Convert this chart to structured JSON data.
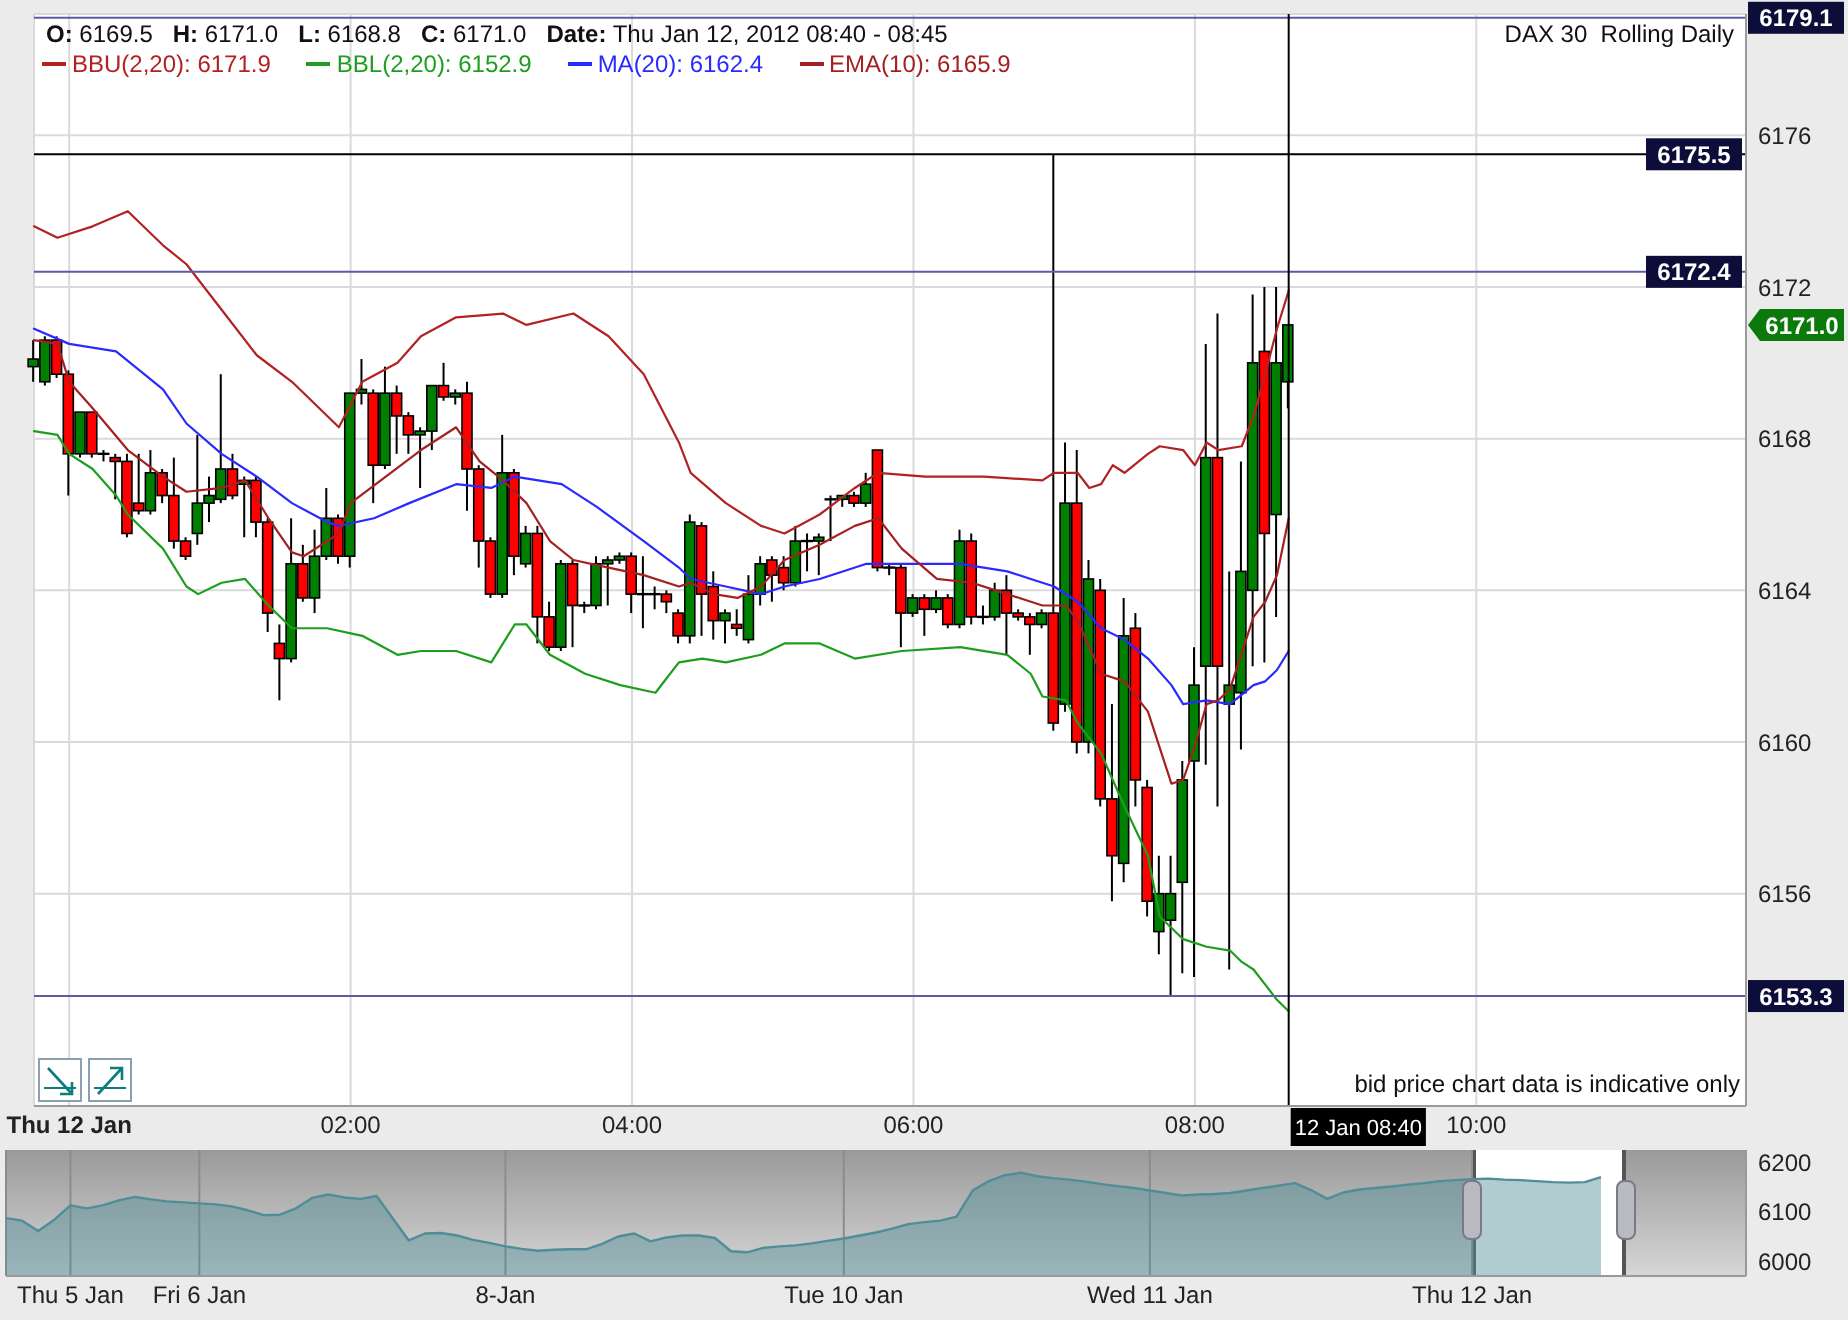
{
  "chart_data": [
    {
      "type": "candlestick",
      "title": "DAX 30  Rolling Daily",
      "subtitle": "O: 6169.5   H: 6171.0   L: 6168.8   C: 6171.0   Date: Thu Jan 12, 2012 08:40 - 08:45",
      "x": [
        "2012-01-11T23:45",
        "2012-01-11T23:50",
        "2012-01-11T23:55",
        "2012-01-12T00:00",
        "2012-01-12T00:05",
        "2012-01-12T00:10",
        "2012-01-12T00:15",
        "2012-01-12T00:20",
        "2012-01-12T00:25",
        "2012-01-12T00:30",
        "2012-01-12T00:35",
        "2012-01-12T00:40",
        "2012-01-12T00:45",
        "2012-01-12T00:50",
        "2012-01-12T00:55",
        "2012-01-12T01:00",
        "2012-01-12T01:05",
        "2012-01-12T01:10",
        "2012-01-12T01:15",
        "2012-01-12T01:20",
        "2012-01-12T01:25",
        "2012-01-12T01:30",
        "2012-01-12T01:35",
        "2012-01-12T01:40",
        "2012-01-12T01:45",
        "2012-01-12T01:50",
        "2012-01-12T01:55",
        "2012-01-12T02:00",
        "2012-01-12T02:05",
        "2012-01-12T02:10",
        "2012-01-12T02:15",
        "2012-01-12T02:20",
        "2012-01-12T02:25",
        "2012-01-12T02:30",
        "2012-01-12T02:35",
        "2012-01-12T02:40",
        "2012-01-12T02:45",
        "2012-01-12T02:50",
        "2012-01-12T02:55",
        "2012-01-12T03:00",
        "2012-01-12T03:05",
        "2012-01-12T03:10",
        "2012-01-12T03:15",
        "2012-01-12T03:20",
        "2012-01-12T03:25",
        "2012-01-12T03:30",
        "2012-01-12T03:35",
        "2012-01-12T03:40",
        "2012-01-12T03:45",
        "2012-01-12T03:50",
        "2012-01-12T03:55",
        "2012-01-12T04:00",
        "2012-01-12T04:05",
        "2012-01-12T04:10",
        "2012-01-12T04:15",
        "2012-01-12T04:20",
        "2012-01-12T04:25",
        "2012-01-12T04:30",
        "2012-01-12T04:35",
        "2012-01-12T04:40",
        "2012-01-12T04:45",
        "2012-01-12T04:50",
        "2012-01-12T04:55",
        "2012-01-12T05:00",
        "2012-01-12T05:05",
        "2012-01-12T05:10",
        "2012-01-12T05:15",
        "2012-01-12T05:20",
        "2012-01-12T05:25",
        "2012-01-12T05:30",
        "2012-01-12T05:35",
        "2012-01-12T05:40",
        "2012-01-12T05:45",
        "2012-01-12T05:50",
        "2012-01-12T05:55",
        "2012-01-12T06:00",
        "2012-01-12T06:05",
        "2012-01-12T06:10",
        "2012-01-12T06:15",
        "2012-01-12T06:20",
        "2012-01-12T06:25",
        "2012-01-12T06:30",
        "2012-01-12T06:35",
        "2012-01-12T06:40",
        "2012-01-12T06:45",
        "2012-01-12T06:50",
        "2012-01-12T06:55",
        "2012-01-12T07:00",
        "2012-01-12T07:05",
        "2012-01-12T07:10",
        "2012-01-12T07:15",
        "2012-01-12T07:20",
        "2012-01-12T07:25",
        "2012-01-12T07:30",
        "2012-01-12T07:35",
        "2012-01-12T07:40",
        "2012-01-12T07:45",
        "2012-01-12T07:50",
        "2012-01-12T07:55",
        "2012-01-12T08:00",
        "2012-01-12T08:05",
        "2012-01-12T08:10",
        "2012-01-12T08:15",
        "2012-01-12T08:20",
        "2012-01-12T08:25",
        "2012-01-12T08:30",
        "2012-01-12T08:35",
        "2012-01-12T08:40"
      ],
      "ohlc": [
        [
          6169.9,
          6170.6,
          6169.5,
          6170.1
        ],
        [
          6169.5,
          6170.7,
          6169.4,
          6170.6
        ],
        [
          6170.6,
          6170.7,
          6169.6,
          6169.7
        ],
        [
          6169.7,
          6169.8,
          6166.5,
          6167.6
        ],
        [
          6167.6,
          6168.7,
          6167.5,
          6168.7
        ],
        [
          6168.7,
          6168.7,
          6167.5,
          6167.6
        ],
        [
          6167.6,
          6167.7,
          6167.4,
          6167.6
        ],
        [
          6167.5,
          6167.6,
          6166.4,
          6167.4
        ],
        [
          6167.4,
          6167.6,
          6165.4,
          6165.5
        ],
        [
          6166.3,
          6167.6,
          6166.0,
          6166.1
        ],
        [
          6166.1,
          6167.7,
          6166.0,
          6167.1
        ],
        [
          6167.1,
          6167.2,
          6166.3,
          6166.5
        ],
        [
          6166.5,
          6167.5,
          6165.1,
          6165.3
        ],
        [
          6165.3,
          6165.4,
          6164.8,
          6164.9
        ],
        [
          6165.5,
          6168.1,
          6165.2,
          6166.3
        ],
        [
          6166.3,
          6167.0,
          6165.8,
          6166.5
        ],
        [
          6166.4,
          6169.7,
          6166.3,
          6167.2
        ],
        [
          6167.2,
          6167.6,
          6166.4,
          6166.5
        ],
        [
          6166.8,
          6167.0,
          6165.4,
          6166.9
        ],
        [
          6166.9,
          6167.0,
          6165.4,
          6165.8
        ],
        [
          6165.8,
          6165.9,
          6162.9,
          6163.4
        ],
        [
          6162.6,
          6163.1,
          6161.1,
          6162.2
        ],
        [
          6162.2,
          6165.9,
          6162.1,
          6164.7
        ],
        [
          6164.7,
          6165.2,
          6163.7,
          6163.8
        ],
        [
          6163.8,
          6165.6,
          6163.4,
          6164.9
        ],
        [
          6164.9,
          6166.7,
          6164.8,
          6165.9
        ],
        [
          6165.9,
          6166.0,
          6164.7,
          6164.9
        ],
        [
          6164.9,
          6169.2,
          6164.6,
          6169.2
        ],
        [
          6169.2,
          6170.1,
          6168.9,
          6169.3
        ],
        [
          6169.2,
          6169.3,
          6166.3,
          6167.3
        ],
        [
          6167.3,
          6169.9,
          6167.2,
          6169.2
        ],
        [
          6169.2,
          6169.4,
          6167.6,
          6168.6
        ],
        [
          6168.6,
          6168.7,
          6167.6,
          6168.1
        ],
        [
          6168.1,
          6168.3,
          6166.7,
          6168.2
        ],
        [
          6168.2,
          6169.4,
          6167.7,
          6169.4
        ],
        [
          6169.4,
          6170.0,
          6169.0,
          6169.1
        ],
        [
          6169.1,
          6169.3,
          6168.9,
          6169.2
        ],
        [
          6169.2,
          6169.5,
          6166.1,
          6167.2
        ],
        [
          6167.2,
          6167.3,
          6164.6,
          6165.3
        ],
        [
          6165.3,
          6165.4,
          6163.8,
          6163.9
        ],
        [
          6163.9,
          6168.1,
          6163.8,
          6167.1
        ],
        [
          6167.1,
          6167.2,
          6164.4,
          6164.9
        ],
        [
          6164.7,
          6165.7,
          6164.6,
          6165.5
        ],
        [
          6165.5,
          6165.7,
          6162.6,
          6163.3
        ],
        [
          6163.3,
          6163.7,
          6162.4,
          6162.5
        ],
        [
          6162.5,
          6164.8,
          6162.4,
          6164.7
        ],
        [
          6164.7,
          6164.8,
          6162.5,
          6163.6
        ],
        [
          6163.6,
          6163.7,
          6163.4,
          6163.6
        ],
        [
          6163.6,
          6164.9,
          6163.5,
          6164.7
        ],
        [
          6164.7,
          6164.9,
          6163.6,
          6164.8
        ],
        [
          6164.8,
          6165.0,
          6164.7,
          6164.9
        ],
        [
          6164.9,
          6165.0,
          6163.4,
          6163.9
        ],
        [
          6163.9,
          6164.9,
          6163.0,
          6163.9
        ],
        [
          6163.9,
          6164.1,
          6163.5,
          6163.9
        ],
        [
          6163.9,
          6164.0,
          6163.4,
          6163.7
        ],
        [
          6163.4,
          6163.5,
          6162.6,
          6162.8
        ],
        [
          6162.8,
          6166.0,
          6162.6,
          6165.8
        ],
        [
          6165.7,
          6165.8,
          6162.8,
          6163.9
        ],
        [
          6164.1,
          6164.5,
          6162.7,
          6163.2
        ],
        [
          6163.2,
          6163.5,
          6162.6,
          6163.4
        ],
        [
          6163.1,
          6163.5,
          6162.8,
          6163.0
        ],
        [
          6162.7,
          6164.4,
          6162.6,
          6163.9
        ],
        [
          6163.9,
          6164.9,
          6163.6,
          6164.7
        ],
        [
          6164.8,
          6164.9,
          6163.7,
          6164.4
        ],
        [
          6164.6,
          6164.9,
          6164.0,
          6164.2
        ],
        [
          6164.2,
          6165.7,
          6164.1,
          6165.3
        ],
        [
          6165.3,
          6165.5,
          6164.5,
          6165.3
        ],
        [
          6165.3,
          6165.5,
          6164.4,
          6165.4
        ],
        [
          6166.4,
          6166.5,
          6165.3,
          6166.4
        ],
        [
          6166.4,
          6166.5,
          6166.2,
          6166.5
        ],
        [
          6166.5,
          6166.6,
          6166.2,
          6166.3
        ],
        [
          6166.3,
          6167.1,
          6166.2,
          6166.8
        ],
        [
          6167.7,
          6167.7,
          6164.5,
          6164.6
        ],
        [
          6164.6,
          6164.7,
          6164.4,
          6164.6
        ],
        [
          6164.6,
          6164.7,
          6162.5,
          6163.4
        ],
        [
          6163.4,
          6163.9,
          6163.3,
          6163.8
        ],
        [
          6163.8,
          6163.9,
          6162.8,
          6163.5
        ],
        [
          6163.5,
          6164.0,
          6163.4,
          6163.8
        ],
        [
          6163.8,
          6163.9,
          6163.0,
          6163.1
        ],
        [
          6163.1,
          6165.6,
          6163.0,
          6165.3
        ],
        [
          6165.3,
          6165.5,
          6163.1,
          6163.3
        ],
        [
          6163.3,
          6163.6,
          6163.1,
          6163.3
        ],
        [
          6163.3,
          6164.2,
          6163.2,
          6164.0
        ],
        [
          6164.0,
          6164.4,
          6162.3,
          6163.4
        ],
        [
          6163.4,
          6163.5,
          6163.2,
          6163.3
        ],
        [
          6163.3,
          6163.4,
          6162.3,
          6163.1
        ],
        [
          6163.1,
          6163.5,
          6163.0,
          6163.4
        ],
        [
          6163.4,
          6175.5,
          6160.3,
          6160.5
        ],
        [
          6161.0,
          6167.9,
          6160.8,
          6166.3
        ],
        [
          6166.3,
          6167.7,
          6159.7,
          6160.0
        ],
        [
          6160.0,
          6164.8,
          6159.7,
          6164.3
        ],
        [
          6164.0,
          6164.3,
          6158.3,
          6158.5
        ],
        [
          6158.5,
          6161.0,
          6155.8,
          6157.0
        ],
        [
          6156.8,
          6163.8,
          6156.3,
          6162.8
        ],
        [
          6163.0,
          6163.4,
          6158.3,
          6159.0
        ],
        [
          6158.8,
          6159.0,
          6155.4,
          6155.8
        ],
        [
          6155.0,
          6157.0,
          6154.4,
          6156.0
        ],
        [
          6155.3,
          6157.0,
          6153.3,
          6156.0
        ],
        [
          6156.3,
          6159.5,
          6153.9,
          6159.0
        ],
        [
          6159.5,
          6162.5,
          6153.8,
          6161.5
        ],
        [
          6162.0,
          6170.5,
          6159.4,
          6167.5
        ],
        [
          6167.5,
          6171.3,
          6158.3,
          6162.0
        ],
        [
          6161.0,
          6164.5,
          6154.0,
          6161.5
        ],
        [
          6161.3,
          6167.4,
          6159.8,
          6164.5
        ],
        [
          6164.0,
          6171.8,
          6162.0,
          6170.0
        ],
        [
          6170.3,
          6172.0,
          6162.1,
          6165.5
        ],
        [
          6166.0,
          6172.0,
          6163.3,
          6170.0
        ],
        [
          6169.5,
          6171.0,
          6168.8,
          6171.0
        ]
      ],
      "colors": [
        "#008000",
        "#008000",
        "#ff0000",
        "#ff0000",
        "#008000",
        "#ff0000",
        "#000000",
        "#ff0000",
        "#ff0000",
        "#ff0000",
        "#008000",
        "#ff0000",
        "#ff0000",
        "#ff0000",
        "#008000",
        "#008000",
        "#008000",
        "#ff0000",
        "#008000",
        "#ff0000",
        "#ff0000",
        "#ff0000",
        "#008000",
        "#ff0000",
        "#008000",
        "#008000",
        "#ff0000",
        "#008000",
        "#008000",
        "#ff0000",
        "#008000",
        "#ff0000",
        "#ff0000",
        "#008000",
        "#008000",
        "#ff0000",
        "#008000",
        "#ff0000",
        "#ff0000",
        "#ff0000",
        "#008000",
        "#ff0000",
        "#008000",
        "#ff0000",
        "#ff0000",
        "#008000",
        "#ff0000",
        "#000000",
        "#008000",
        "#008000",
        "#008000",
        "#ff0000",
        "#000000",
        "#000000",
        "#ff0000",
        "#ff0000",
        "#008000",
        "#ff0000",
        "#ff0000",
        "#008000",
        "#ff0000",
        "#008000",
        "#008000",
        "#ff0000",
        "#ff0000",
        "#008000",
        "#000000",
        "#008000",
        "#000000",
        "#008000",
        "#ff0000",
        "#008000",
        "#ff0000",
        "#000000",
        "#ff0000",
        "#008000",
        "#ff0000",
        "#008000",
        "#ff0000",
        "#008000",
        "#ff0000",
        "#000000",
        "#008000",
        "#ff0000",
        "#ff0000",
        "#ff0000",
        "#008000",
        "#ff0000",
        "#008000",
        "#ff0000",
        "#008000",
        "#ff0000",
        "#ff0000",
        "#008000",
        "#ff0000",
        "#ff0000",
        "#008000",
        "#008000",
        "#008000",
        "#008000",
        "#008000",
        "#ff0000",
        "#008000",
        "#008000",
        "#008000",
        "#ff0000",
        "#008000",
        "#008000"
      ],
      "series": [
        {
          "type": "line",
          "name": "BBU(2,20): 6171.9",
          "color": "#b22222",
          "x": [
            "2012-01-11T23:45",
            "2012-01-11T23:55",
            "2012-01-12T00:10",
            "2012-01-12T00:25",
            "2012-01-12T00:40",
            "2012-01-12T00:50",
            "2012-01-12T01:05",
            "2012-01-12T01:20",
            "2012-01-12T01:35",
            "2012-01-12T01:55",
            "2012-01-12T02:05",
            "2012-01-12T02:20",
            "2012-01-12T02:30",
            "2012-01-12T02:45",
            "2012-01-12T03:05",
            "2012-01-12T03:15",
            "2012-01-12T03:35",
            "2012-01-12T03:50",
            "2012-01-12T04:05",
            "2012-01-12T04:20",
            "2012-01-12T04:25",
            "2012-01-12T04:40",
            "2012-01-12T04:55",
            "2012-01-12T05:05",
            "2012-01-12T05:20",
            "2012-01-12T05:35",
            "2012-01-12T05:45",
            "2012-01-12T06:05",
            "2012-01-12T06:30",
            "2012-01-12T06:55",
            "2012-01-12T07:00",
            "2012-01-12T07:10",
            "2012-01-12T07:15",
            "2012-01-12T07:20",
            "2012-01-12T07:25",
            "2012-01-12T07:30",
            "2012-01-12T07:40",
            "2012-01-12T07:45",
            "2012-01-12T07:55",
            "2012-01-12T08:00",
            "2012-01-12T08:05",
            "2012-01-12T08:10",
            "2012-01-12T08:20",
            "2012-01-12T08:25",
            "2012-01-12T08:30",
            "2012-01-12T08:35",
            "2012-01-12T08:40"
          ],
          "values": [
            6173.6,
            6173.3,
            6173.6,
            6174.0,
            6173.1,
            6172.6,
            6171.4,
            6170.2,
            6169.5,
            6168.3,
            6169.5,
            6170.0,
            6170.7,
            6171.2,
            6171.3,
            6171.0,
            6171.3,
            6170.7,
            6169.7,
            6167.9,
            6167.1,
            6166.3,
            6165.7,
            6165.5,
            6166.0,
            6166.7,
            6167.1,
            6167.0,
            6167.0,
            6166.9,
            6167.1,
            6167.1,
            6166.7,
            6166.8,
            6167.3,
            6167.1,
            6167.6,
            6167.8,
            6167.7,
            6167.3,
            6167.9,
            6167.7,
            6167.8,
            6168.6,
            6169.7,
            6170.9,
            6171.9
          ]
        },
        {
          "type": "line",
          "name": "BBL(2,20): 6152.9",
          "color": "#1e9e1e",
          "x": [
            "2012-01-11T23:45",
            "2012-01-11T23:55",
            "2012-01-12T00:00",
            "2012-01-12T00:10",
            "2012-01-12T00:20",
            "2012-01-12T00:25",
            "2012-01-12T00:40",
            "2012-01-12T00:50",
            "2012-01-12T00:55",
            "2012-01-12T01:05",
            "2012-01-12T01:15",
            "2012-01-12T01:25",
            "2012-01-12T01:35",
            "2012-01-12T01:50",
            "2012-01-12T02:05",
            "2012-01-12T02:20",
            "2012-01-12T02:30",
            "2012-01-12T02:45",
            "2012-01-12T03:00",
            "2012-01-12T03:10",
            "2012-01-12T03:15",
            "2012-01-12T03:25",
            "2012-01-12T03:40",
            "2012-01-12T03:55",
            "2012-01-12T04:10",
            "2012-01-12T04:15",
            "2012-01-12T04:20",
            "2012-01-12T04:30",
            "2012-01-12T04:40",
            "2012-01-12T04:55",
            "2012-01-12T05:05",
            "2012-01-12T05:20",
            "2012-01-12T05:35",
            "2012-01-12T05:55",
            "2012-01-12T06:20",
            "2012-01-12T06:40",
            "2012-01-12T06:50",
            "2012-01-12T06:55",
            "2012-01-12T07:05",
            "2012-01-12T07:10",
            "2012-01-12T07:20",
            "2012-01-12T07:30",
            "2012-01-12T07:40",
            "2012-01-12T07:45",
            "2012-01-12T07:55",
            "2012-01-12T08:05",
            "2012-01-12T08:15",
            "2012-01-12T08:20",
            "2012-01-12T08:25",
            "2012-01-12T08:30",
            "2012-01-12T08:35",
            "2012-01-12T08:40"
          ],
          "values": [
            6168.2,
            6168.1,
            6167.6,
            6167.2,
            6166.5,
            6166.0,
            6165.1,
            6164.1,
            6163.9,
            6164.2,
            6164.3,
            6163.6,
            6163.0,
            6163.0,
            6162.8,
            6162.3,
            6162.4,
            6162.4,
            6162.1,
            6163.1,
            6163.1,
            6162.3,
            6161.8,
            6161.5,
            6161.3,
            6161.7,
            6162.1,
            6162.2,
            6162.1,
            6162.3,
            6162.6,
            6162.6,
            6162.2,
            6162.4,
            6162.5,
            6162.3,
            6161.8,
            6161.2,
            6161.1,
            6160.5,
            6159.7,
            6158.3,
            6157.0,
            6155.4,
            6154.8,
            6154.6,
            6154.5,
            6154.2,
            6154.0,
            6153.6,
            6153.2,
            6152.9
          ]
        },
        {
          "type": "line",
          "name": "MA(20): 6162.4",
          "color": "#2a2aff",
          "x": [
            "2012-01-11T23:45",
            "2012-01-12T00:00",
            "2012-01-12T00:20",
            "2012-01-12T00:40",
            "2012-01-12T00:50",
            "2012-01-12T01:05",
            "2012-01-12T01:20",
            "2012-01-12T01:35",
            "2012-01-12T01:50",
            "2012-01-12T01:55",
            "2012-01-12T02:10",
            "2012-01-12T02:25",
            "2012-01-12T02:45",
            "2012-01-12T03:00",
            "2012-01-12T03:10",
            "2012-01-12T03:30",
            "2012-01-12T03:45",
            "2012-01-12T04:05",
            "2012-01-12T04:20",
            "2012-01-12T04:25",
            "2012-01-12T04:40",
            "2012-01-12T04:55",
            "2012-01-12T05:05",
            "2012-01-12T05:20",
            "2012-01-12T05:40",
            "2012-01-12T06:00",
            "2012-01-12T06:20",
            "2012-01-12T06:40",
            "2012-01-12T06:50",
            "2012-01-12T07:00",
            "2012-01-12T07:10",
            "2012-01-12T07:20",
            "2012-01-12T07:30",
            "2012-01-12T07:40",
            "2012-01-12T07:50",
            "2012-01-12T07:55",
            "2012-01-12T08:05",
            "2012-01-12T08:15",
            "2012-01-12T08:25",
            "2012-01-12T08:30",
            "2012-01-12T08:35",
            "2012-01-12T08:40"
          ],
          "values": [
            6170.9,
            6170.5,
            6170.3,
            6169.3,
            6168.4,
            6167.6,
            6167.0,
            6166.3,
            6165.8,
            6165.7,
            6165.9,
            6166.3,
            6166.8,
            6166.7,
            6167.0,
            6166.8,
            6166.2,
            6165.3,
            6164.6,
            6164.3,
            6164.1,
            6163.9,
            6164.1,
            6164.3,
            6164.7,
            6164.7,
            6164.7,
            6164.5,
            6164.3,
            6164.1,
            6163.7,
            6163.0,
            6162.7,
            6162.2,
            6161.5,
            6161.0,
            6161.1,
            6161.0,
            6161.5,
            6161.6,
            6161.9,
            6162.4
          ]
        },
        {
          "type": "line",
          "name": "EMA(10): 6165.9",
          "color": "#a52020",
          "x": [
            "2012-01-11T23:45",
            "2012-01-11T23:55",
            "2012-01-12T00:00",
            "2012-01-12T00:10",
            "2012-01-12T00:25",
            "2012-01-12T00:40",
            "2012-01-12T00:50",
            "2012-01-12T01:05",
            "2012-01-12T01:15",
            "2012-01-12T01:25",
            "2012-01-12T01:35",
            "2012-01-12T01:40",
            "2012-01-12T01:55",
            "2012-01-12T02:00",
            "2012-01-12T02:15",
            "2012-01-12T02:30",
            "2012-01-12T02:45",
            "2012-01-12T02:55",
            "2012-01-12T03:05",
            "2012-01-12T03:15",
            "2012-01-12T03:25",
            "2012-01-12T03:35",
            "2012-01-12T03:50",
            "2012-01-12T04:05",
            "2012-01-12T04:20",
            "2012-01-12T04:25",
            "2012-01-12T04:35",
            "2012-01-12T04:45",
            "2012-01-12T04:55",
            "2012-01-12T05:05",
            "2012-01-12T05:20",
            "2012-01-12T05:35",
            "2012-01-12T05:45",
            "2012-01-12T05:55",
            "2012-01-12T06:10",
            "2012-01-12T06:25",
            "2012-01-12T06:35",
            "2012-01-12T06:55",
            "2012-01-12T07:05",
            "2012-01-12T07:10",
            "2012-01-12T07:20",
            "2012-01-12T07:30",
            "2012-01-12T07:40",
            "2012-01-12T07:50",
            "2012-01-12T07:55",
            "2012-01-12T08:00",
            "2012-01-12T08:05",
            "2012-01-12T08:10",
            "2012-01-12T08:15",
            "2012-01-12T08:25",
            "2012-01-12T08:30",
            "2012-01-12T08:35",
            "2012-01-12T08:40"
          ],
          "values": [
            6170.6,
            6170.5,
            6169.5,
            6168.8,
            6167.7,
            6167.0,
            6166.6,
            6166.7,
            6166.9,
            6165.9,
            6165.0,
            6164.9,
            6165.5,
            6166.3,
            6167.0,
            6167.7,
            6168.3,
            6167.4,
            6166.9,
            6166.3,
            6165.3,
            6164.8,
            6164.6,
            6164.4,
            6164.1,
            6164.2,
            6163.9,
            6163.8,
            6164.1,
            6164.8,
            6165.2,
            6165.7,
            6165.9,
            6165.1,
            6164.3,
            6164.2,
            6164.0,
            6163.6,
            6163.6,
            6163.2,
            6161.8,
            6161.6,
            6160.8,
            6158.9,
            6159.0,
            6159.9,
            6161.0,
            6161.1,
            6161.4,
            6163.3,
            6163.7,
            6164.4,
            6165.9
          ]
        }
      ],
      "xlim": [
        "2012-01-11T23:45",
        "2012-01-12T11:55"
      ],
      "xticks": [
        {
          "value": "2012-01-12T00:00",
          "label": "Thu 12 Jan"
        },
        {
          "value": "2012-01-12T02:00",
          "label": "02:00"
        },
        {
          "value": "2012-01-12T04:00",
          "label": "04:00"
        },
        {
          "value": "2012-01-12T06:00",
          "label": "06:00"
        },
        {
          "value": "2012-01-12T08:00",
          "label": "08:00"
        },
        {
          "value": "2012-01-12T10:00",
          "label": "10:00"
        }
      ],
      "ylim": [
        6150.4,
        6179.2
      ],
      "yticks": [
        6156,
        6160,
        6164,
        6168,
        6172,
        6176
      ],
      "grid": true,
      "legend": "top left",
      "ref_lines": [
        {
          "axis": "y",
          "value": 6179.1,
          "label": "6179.1",
          "color": "#5b5ba8"
        },
        {
          "axis": "y",
          "value": 6175.5,
          "label": "6175.5",
          "color": "#000000"
        },
        {
          "axis": "y",
          "value": 6172.4,
          "label": "6172.4",
          "color": "#5b5ba8"
        },
        {
          "axis": "y",
          "value": 6153.3,
          "label": "6153.3",
          "color": "#5b5ba8"
        },
        {
          "axis": "x",
          "value": "2012-01-12T08:40",
          "label": "12 Jan 08:40",
          "color": "#000000"
        }
      ],
      "annotations": [
        "bid price chart data is indicative only",
        "6171.0"
      ]
    },
    {
      "type": "area",
      "categories": [
        null,
        null,
        null,
        null,
        "Thu 5 Jan",
        null,
        null,
        null,
        null,
        null,
        null,
        null,
        "Fri 6 Jan",
        null,
        null,
        null,
        null,
        null,
        null,
        null,
        null,
        null,
        null,
        null,
        null,
        null,
        null,
        null,
        null,
        null,
        null,
        "8-Jan",
        null,
        null,
        null,
        null,
        null,
        null,
        null,
        null,
        null,
        null,
        null,
        null,
        null,
        null,
        null,
        null,
        null,
        null,
        null,
        null,
        "Tue 10 Jan",
        null,
        null,
        null,
        null,
        null,
        null,
        null,
        null,
        null,
        null,
        null,
        null,
        null,
        null,
        null,
        null,
        null,
        null,
        "Wed 11 Jan",
        null,
        null,
        null,
        null,
        null,
        null,
        null,
        null,
        null,
        null,
        null,
        null,
        null,
        null,
        null,
        null,
        null,
        null,
        null,
        "Thu 12 Jan",
        null,
        null,
        null,
        null,
        null,
        null,
        null,
        null,
        null,
        null,
        null,
        null,
        null,
        null,
        null,
        null,
        null
      ],
      "values": [
        6087,
        6082,
        6061,
        6084,
        6113,
        6107,
        6113,
        6123,
        6130,
        6125,
        6121,
        6119,
        6117,
        6115,
        6111,
        6103,
        6093,
        6094,
        6107,
        6128,
        6135,
        6129,
        6126,
        6132,
        6087,
        6042,
        6056,
        6057,
        6052,
        6043,
        6037,
        6030,
        6025,
        6021,
        6023,
        6024,
        6024,
        6035,
        6050,
        6056,
        6040,
        6048,
        6052,
        6052,
        6047,
        6020,
        6018,
        6027,
        6030,
        6032,
        6036,
        6041,
        6046,
        6052,
        6058,
        6066,
        6075,
        6079,
        6082,
        6090,
        6143,
        6162,
        6174,
        6179,
        6172,
        6168,
        6165,
        6161,
        6156,
        6152,
        6148,
        6143,
        6138,
        6133,
        6135,
        6136,
        6138,
        6143,
        6148,
        6153,
        6158,
        6144,
        6126,
        6139,
        6145,
        6148,
        6151,
        6155,
        6158,
        6162,
        6164,
        6166,
        6167,
        6165,
        6164,
        6162,
        6160,
        6159,
        6160,
        6170,
        null,
        null,
        null,
        null,
        null,
        null,
        null,
        null,
        null
      ],
      "color": "#4f8e98",
      "ylim": [
        5970,
        6225
      ],
      "yticks": [
        6000,
        6100,
        6200
      ],
      "grid": "x"
    }
  ]
}
